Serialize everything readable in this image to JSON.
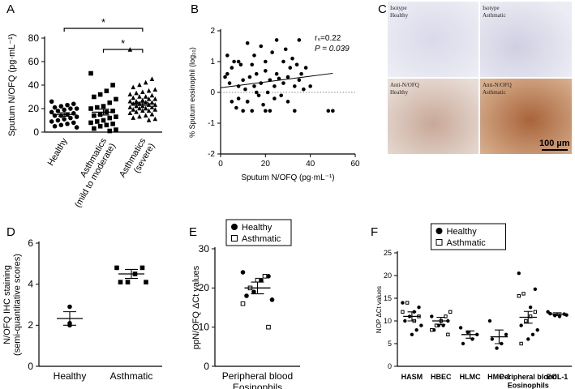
{
  "chart_data": [
    {
      "type": "strip",
      "panel": "A",
      "ylabel": "Sputum N/OFQ (pg·mL⁻¹)",
      "categories": [
        "Healthy",
        "Asthmatics\n(mild to moderate)",
        "Asthmatics\n(severe)"
      ],
      "markers": [
        "circle",
        "square",
        "triangle"
      ],
      "groups": [
        [
          26,
          24,
          23,
          22,
          21,
          20,
          20,
          19,
          18,
          17,
          16,
          15,
          14,
          14,
          13,
          12,
          11,
          10,
          9,
          8,
          7,
          6,
          5,
          4
        ],
        [
          50,
          40,
          35,
          32,
          30,
          28,
          25,
          22,
          21,
          20,
          18,
          17,
          15,
          14,
          13,
          12,
          10,
          9,
          8,
          7,
          6,
          5,
          3,
          2,
          1
        ],
        [
          70,
          45,
          42,
          40,
          38,
          36,
          35,
          34,
          33,
          32,
          31,
          30,
          30,
          29,
          28,
          28,
          27,
          26,
          26,
          25,
          25,
          24,
          24,
          23,
          23,
          22,
          22,
          21,
          21,
          20,
          20,
          19,
          19,
          18,
          18,
          17,
          16,
          15,
          14,
          13,
          12,
          11,
          10
        ]
      ],
      "mean": [
        15,
        17,
        24
      ],
      "sem": [
        1.5,
        2.5,
        1.4
      ],
      "brackets": [
        {
          "label": "*",
          "from": "Healthy",
          "to": "Asthmatics\n(severe)"
        },
        {
          "label": "*",
          "from": "Asthmatics\n(mild to moderate)",
          "to": "Asthmatics\n(severe)"
        }
      ],
      "ylim": [
        0,
        80
      ],
      "yticks": [
        0,
        20,
        40,
        60,
        80
      ]
    },
    {
      "type": "scatter",
      "panel": "B",
      "ylabel": "% Sputum eosinophil (log₁₀)",
      "xlabel": "Sputum N/OFQ (pg·mL⁻¹)",
      "x": [
        2,
        3,
        4,
        5,
        5,
        6,
        7,
        8,
        8,
        9,
        10,
        10,
        11,
        12,
        12,
        13,
        14,
        14,
        15,
        15,
        16,
        17,
        18,
        18,
        19,
        20,
        20,
        21,
        22,
        22,
        23,
        24,
        24,
        25,
        25,
        26,
        27,
        28,
        28,
        29,
        30,
        30,
        31,
        32,
        33,
        33,
        34,
        35,
        35,
        36,
        37,
        38,
        40,
        48,
        50,
        3,
        8,
        12,
        16,
        20
      ],
      "y": [
        0.5,
        1.2,
        0.3,
        -0.3,
        0.8,
        1.0,
        -0.5,
        0.2,
        -0.2,
        0.9,
        -0.6,
        0.4,
        0.1,
        1.6,
        -0.3,
        0.5,
        0.9,
        -0.6,
        0.2,
        1.2,
        0.6,
        -0.1,
        1.5,
        0.3,
        -0.4,
        0.7,
        1.0,
        0,
        -0.6,
        0.4,
        1.3,
        0.2,
        -0.2,
        0.6,
        1.7,
        0.45,
        -0.1,
        1.0,
        0.3,
        1.4,
        0.5,
        -0.3,
        0.8,
        1.1,
        0.2,
        -0.6,
        0.9,
        1.7,
        0.4,
        0.6,
        0.1,
        0.8,
        0.2,
        -0.6,
        -0.6,
        0.6,
        1.0,
        -0.3,
        0.0,
        -0.6
      ],
      "fit": {
        "x": [
          0,
          50
        ],
        "y": [
          0.15,
          0.62
        ]
      },
      "hline": 0,
      "annotations": [
        "rₛ=0.22",
        "P = 0.039"
      ],
      "xlim": [
        0,
        60
      ],
      "xticks": [
        0,
        20,
        40,
        60
      ],
      "ylim": [
        -2,
        2
      ],
      "yticks": [
        -2,
        -1,
        0,
        1,
        2
      ]
    },
    {
      "type": "strip",
      "panel": "D",
      "ylabel": "N/OFQ IHC staining\n(semi-quantitative scores)",
      "categories": [
        "Healthy",
        "Asthmatic"
      ],
      "markers": [
        "circle",
        "square"
      ],
      "groups": [
        [
          2.9,
          2.1,
          2.0
        ],
        [
          4.8,
          4.8,
          4.5,
          4.1,
          4.1,
          4.1
        ]
      ],
      "mean": [
        2.33,
        4.5
      ],
      "sem": [
        0.33,
        0.22
      ],
      "ylim": [
        0,
        6
      ],
      "yticks": [
        0,
        2,
        4,
        6
      ]
    },
    {
      "type": "strip",
      "panel": "E",
      "ylabel": "ppN/OFQ ΔCt values",
      "categories": [
        "Peripheral blood\nEosinophils"
      ],
      "legend": "upper-left",
      "series": [
        {
          "name": "Healthy",
          "marker": "circle",
          "values": [
            [
              24,
              23,
              22,
              19,
              18,
              17
            ]
          ]
        },
        {
          "name": "Asthmatic",
          "marker": "open-square",
          "values": [
            [
              23,
              22,
              20,
              16,
              10
            ]
          ]
        }
      ],
      "mean": [
        20
      ],
      "sem": [
        1.5
      ],
      "ylim": [
        0,
        30
      ],
      "yticks": [
        0,
        10,
        20,
        30
      ]
    },
    {
      "type": "strip",
      "panel": "F",
      "ylabel": "NOP ΔCt values",
      "categories": [
        "HASM",
        "HBEC",
        "HLMC",
        "HMC-1",
        "Peripheral blood\nEosinophils",
        "EOL-1"
      ],
      "legend": "upper-center",
      "series": [
        {
          "name": "Healthy",
          "marker": "circle",
          "values": [
            [
              14,
              13,
              12,
              11,
              10,
              9,
              8,
              7
            ],
            [
              11,
              10,
              9,
              9,
              8
            ],
            [
              8.5,
              7,
              6,
              7.5,
              5
            ],
            [
              10,
              7,
              5,
              4,
              6
            ],
            [
              20.5,
              17,
              13,
              10,
              9,
              8,
              7,
              6
            ],
            [
              12,
              11.5,
              11,
              11.2,
              11.6,
              11.3
            ]
          ]
        },
        {
          "name": "Asthmatic",
          "marker": "open-square",
          "values": [
            [
              14,
              12,
              11,
              10
            ],
            [
              12,
              11,
              10,
              9,
              8,
              7
            ],
            [],
            [],
            [
              16,
              15.5,
              12,
              11,
              10,
              5
            ],
            []
          ]
        }
      ],
      "mean": [
        11,
        10,
        7,
        6.5,
        10.8,
        11.5
      ],
      "sem": [
        1,
        0.8,
        0.8,
        1.5,
        1.3,
        0.3
      ],
      "ylim": [
        0,
        25
      ],
      "yticks": [
        0,
        5,
        10,
        15,
        20,
        25
      ]
    }
  ],
  "panel_c": {
    "panel": "C",
    "tiles": [
      [
        "Isotype",
        "Healthy"
      ],
      [
        "Isotype",
        "Asthmatic"
      ],
      [
        "Anti-N/OFQ",
        "Healthy"
      ],
      [
        "Anti-N/OFQ",
        "Asthmatic"
      ]
    ],
    "scale_bar": "100 µm"
  }
}
